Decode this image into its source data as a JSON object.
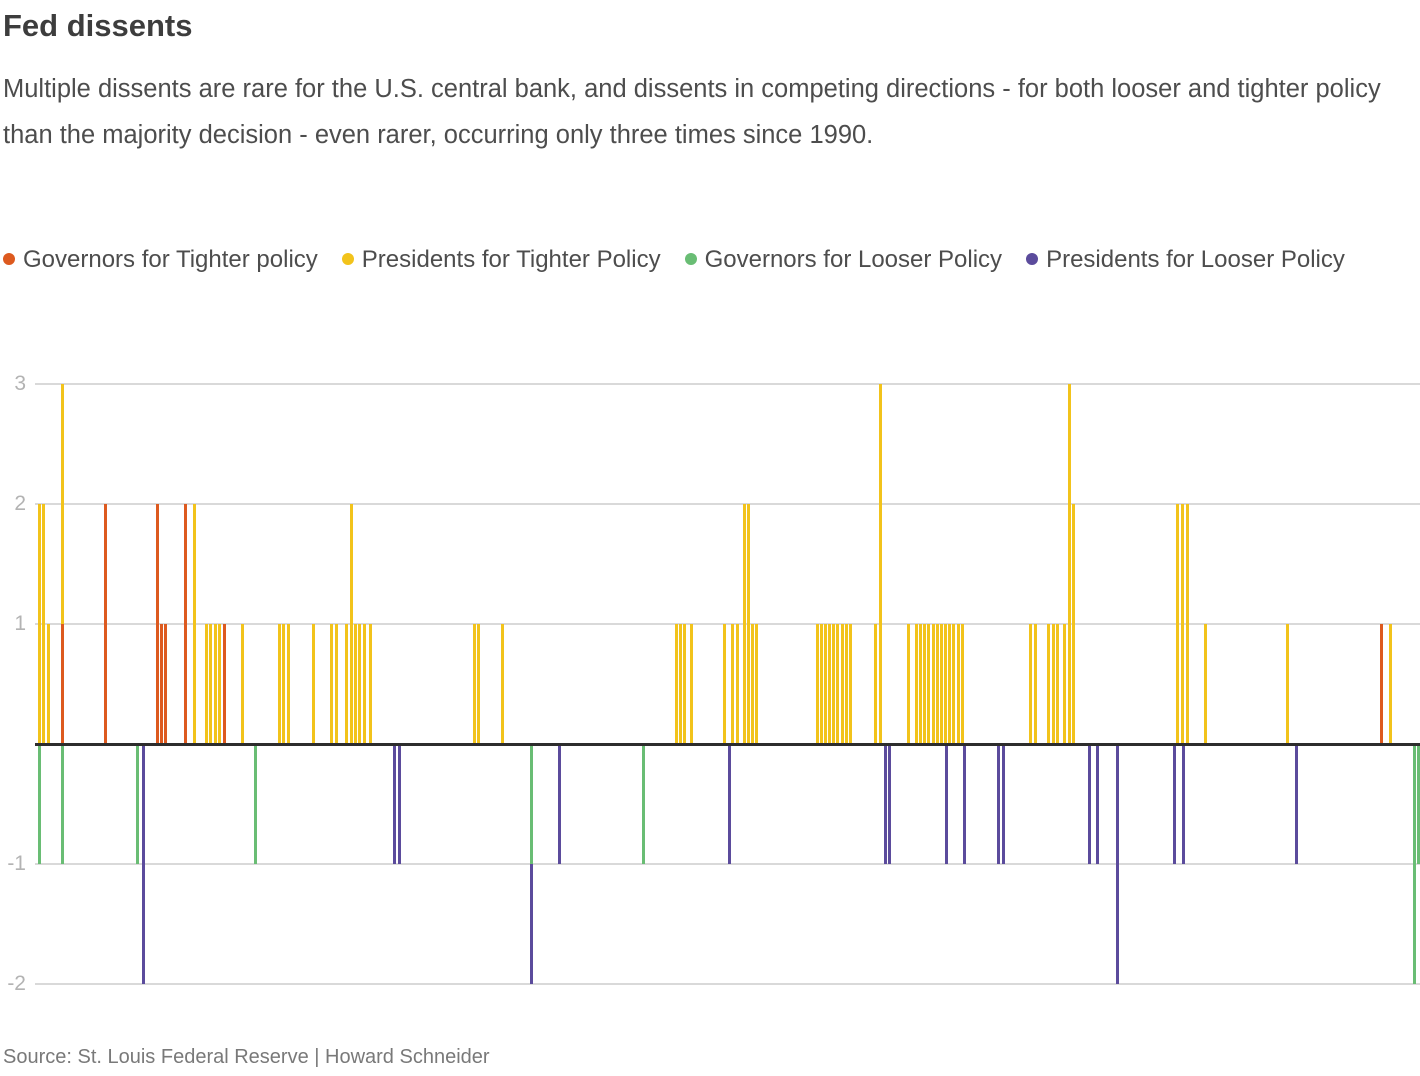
{
  "header": {
    "title": "Fed dissents",
    "subtitle": "Multiple dissents are rare for the U.S. central bank, and dissents in competing directions - for both looser and tighter policy than the majority decision - even rarer, occurring only three times since 1990."
  },
  "legend": [
    {
      "label": "Governors for Tighter policy",
      "color": "#DD5A1F"
    },
    {
      "label": "Presidents for Tighter Policy",
      "color": "#F2C31B"
    },
    {
      "label": "Governors for Looser Policy",
      "color": "#69BD74"
    },
    {
      "label": "Presidents for Looser Policy",
      "color": "#5B4B9C"
    }
  ],
  "source": {
    "text": "Source: St. Louis Federal Reserve | Howard Schneider"
  },
  "chart_data": {
    "type": "bar",
    "title": "Fed dissents",
    "ylim": [
      -2,
      3
    ],
    "yticks": [
      3,
      2,
      1,
      -1,
      -2
    ],
    "grid": true,
    "x_encoding": "horizontal position in image pixels; timeline since 1990, no x-axis labels shown",
    "unit": "number of dissenting votes (positive = tighter, negative = looser)",
    "series": [
      {
        "name": "Presidents for Tighter Policy",
        "color": "#F2C31B",
        "bars": [
          [
            38,
            2
          ],
          [
            42,
            2
          ],
          [
            47,
            1
          ],
          [
            61,
            3
          ],
          [
            193,
            2
          ],
          [
            205,
            1
          ],
          [
            209,
            1
          ],
          [
            214,
            1
          ],
          [
            218,
            1
          ],
          [
            241,
            1
          ],
          [
            278,
            1
          ],
          [
            282,
            1
          ],
          [
            287,
            1
          ],
          [
            312,
            1
          ],
          [
            330,
            1
          ],
          [
            335,
            1
          ],
          [
            345,
            1
          ],
          [
            350,
            2
          ],
          [
            354,
            1
          ],
          [
            358,
            1
          ],
          [
            363,
            1
          ],
          [
            369,
            1
          ],
          [
            473,
            1
          ],
          [
            477,
            1
          ],
          [
            501,
            1
          ],
          [
            675,
            1
          ],
          [
            679,
            1
          ],
          [
            683,
            1
          ],
          [
            690,
            1
          ],
          [
            723,
            1
          ],
          [
            731,
            1
          ],
          [
            736,
            1
          ],
          [
            743,
            2
          ],
          [
            747,
            2
          ],
          [
            751,
            1
          ],
          [
            755,
            1
          ],
          [
            816,
            1
          ],
          [
            820,
            1
          ],
          [
            824,
            1
          ],
          [
            828,
            1
          ],
          [
            832,
            1
          ],
          [
            836,
            1
          ],
          [
            841,
            1
          ],
          [
            845,
            1
          ],
          [
            849,
            1
          ],
          [
            874,
            1
          ],
          [
            879,
            3
          ],
          [
            907,
            1
          ],
          [
            915,
            1
          ],
          [
            919,
            1
          ],
          [
            923,
            1
          ],
          [
            927,
            1
          ],
          [
            932,
            1
          ],
          [
            936,
            1
          ],
          [
            940,
            1
          ],
          [
            944,
            1
          ],
          [
            948,
            1
          ],
          [
            952,
            1
          ],
          [
            957,
            1
          ],
          [
            961,
            1
          ],
          [
            1029,
            1
          ],
          [
            1034,
            1
          ],
          [
            1047,
            1
          ],
          [
            1052,
            1
          ],
          [
            1056,
            1
          ],
          [
            1063,
            1
          ],
          [
            1068,
            3
          ],
          [
            1072,
            2
          ],
          [
            1176,
            2
          ],
          [
            1181,
            2
          ],
          [
            1186,
            2
          ],
          [
            1204,
            1
          ],
          [
            1286,
            1
          ],
          [
            1389,
            1
          ]
        ]
      },
      {
        "name": "Governors for Tighter policy",
        "color": "#DD5A1F",
        "bars": [
          [
            61,
            1
          ],
          [
            104,
            2
          ],
          [
            156,
            2
          ],
          [
            160,
            1
          ],
          [
            164,
            1
          ],
          [
            184,
            2
          ],
          [
            223,
            1
          ],
          [
            1380,
            1
          ]
        ]
      },
      {
        "name": "Presidents for Looser Policy",
        "color": "#5B4B9C",
        "bars": [
          [
            142,
            -2
          ],
          [
            393,
            -1
          ],
          [
            398,
            -1
          ],
          [
            530,
            -2
          ],
          [
            558,
            -1
          ],
          [
            728,
            -1
          ],
          [
            884,
            -1
          ],
          [
            888,
            -1
          ],
          [
            945,
            -1
          ],
          [
            963,
            -1
          ],
          [
            997,
            -1
          ],
          [
            1002,
            -1
          ],
          [
            1088,
            -1
          ],
          [
            1096,
            -1
          ],
          [
            1116,
            -2
          ],
          [
            1173,
            -1
          ],
          [
            1182,
            -1
          ],
          [
            1295,
            -1
          ]
        ]
      },
      {
        "name": "Governors for Looser Policy",
        "color": "#69BD74",
        "bars": [
          [
            38,
            -1
          ],
          [
            61,
            -1
          ],
          [
            136,
            -1
          ],
          [
            254,
            -1
          ],
          [
            530,
            -1
          ],
          [
            642,
            -1
          ],
          [
            1413,
            -2
          ],
          [
            1417,
            -1
          ]
        ]
      }
    ]
  }
}
